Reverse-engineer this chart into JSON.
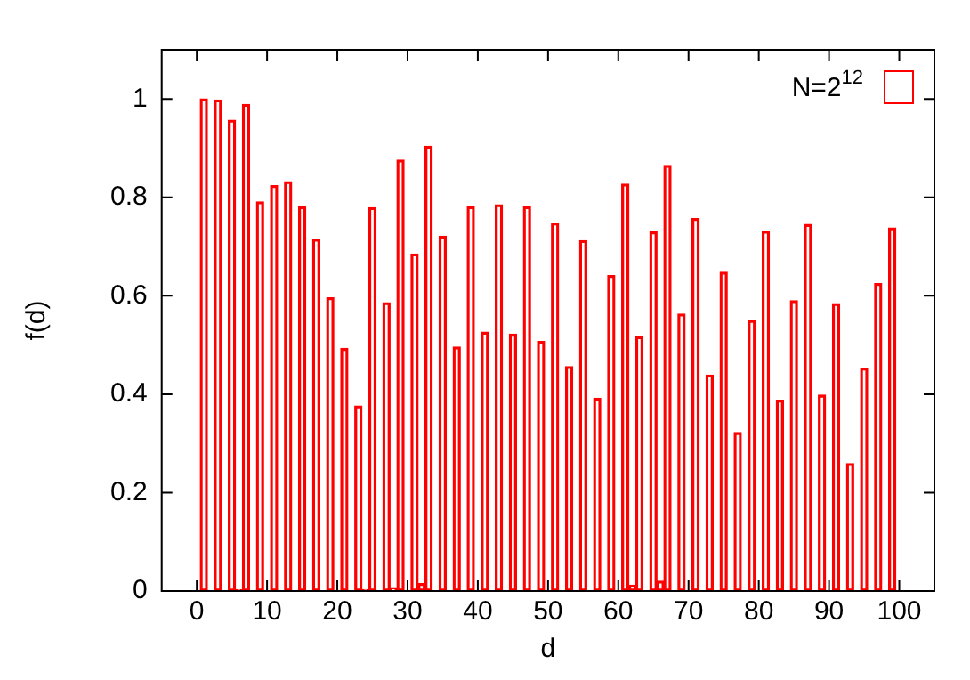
{
  "chart_data": {
    "type": "bar",
    "xlabel": "d",
    "ylabel": "f(d)",
    "x": [
      1,
      3,
      5,
      6,
      7,
      9,
      11,
      13,
      15,
      17,
      19,
      21,
      23,
      24,
      25,
      27,
      28,
      29,
      31,
      32,
      33,
      35,
      37,
      39,
      41,
      43,
      45,
      47,
      49,
      51,
      53,
      55,
      57,
      59,
      61,
      62,
      63,
      65,
      66,
      67,
      69,
      71,
      73,
      75,
      77,
      79,
      81,
      83,
      85,
      87,
      89,
      91,
      93,
      95,
      97,
      99
    ],
    "series": [
      {
        "name": "N=2$^{12}$",
        "color": "#ff0000",
        "values": [
          1.0,
          0.998,
          0.957,
          0.003,
          0.989,
          0.791,
          0.824,
          0.832,
          0.781,
          0.715,
          0.596,
          0.493,
          0.376,
          0.003,
          0.779,
          0.586,
          0.005,
          0.876,
          0.685,
          0.015,
          0.904,
          0.721,
          0.496,
          0.781,
          0.526,
          0.785,
          0.522,
          0.781,
          0.507,
          0.748,
          0.456,
          0.712,
          0.392,
          0.641,
          0.827,
          0.012,
          0.517,
          0.73,
          0.02,
          0.865,
          0.563,
          0.757,
          0.439,
          0.648,
          0.322,
          0.55,
          0.731,
          0.388,
          0.59,
          0.745,
          0.398,
          0.584,
          0.259,
          0.453,
          0.625,
          0.738
        ]
      }
    ],
    "xlim": [
      0,
      100
    ],
    "xticks": [
      0,
      10,
      20,
      30,
      40,
      50,
      60,
      70,
      80,
      90,
      100
    ],
    "ylim": [
      0,
      1.1
    ],
    "yticks": [
      0,
      0.2,
      0.4,
      0.6,
      0.8,
      1
    ],
    "legend": "top right",
    "grid": false
  }
}
